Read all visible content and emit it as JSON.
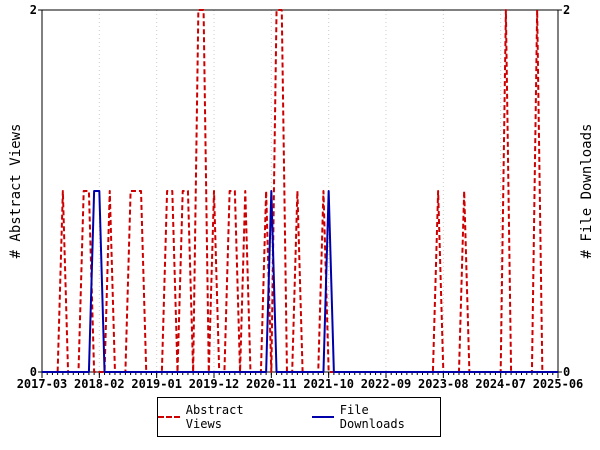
{
  "chart_data": {
    "type": "line",
    "x_tick_labels": [
      "2017-03",
      "2018-02",
      "2019-01",
      "2019-12",
      "2020-11",
      "2021-10",
      "2022-09",
      "2023-08",
      "2024-07",
      "2025-06"
    ],
    "x_range": [
      "2017-03",
      "2025-06"
    ],
    "ylabel_left": "# Abstract Views",
    "ylabel_right": "# File Downloads",
    "y_tick_labels_left": [
      "0",
      "2"
    ],
    "y_tick_labels_right": [
      "0",
      "2"
    ],
    "ylim": [
      0,
      2
    ],
    "legend_position": "bottom",
    "series": [
      {
        "name": "Abstract Views",
        "color": "#cc0000",
        "style": "dashed",
        "points": [
          [
            "2017-07",
            1
          ],
          [
            "2017-11",
            1
          ],
          [
            "2017-12",
            1
          ],
          [
            "2018-04",
            1
          ],
          [
            "2018-08",
            1
          ],
          [
            "2018-09",
            1
          ],
          [
            "2018-10",
            1
          ],
          [
            "2019-03",
            1
          ],
          [
            "2019-04",
            1
          ],
          [
            "2019-06",
            1
          ],
          [
            "2019-07",
            1
          ],
          [
            "2019-09",
            2
          ],
          [
            "2019-10",
            2
          ],
          [
            "2019-12",
            1
          ],
          [
            "2020-03",
            1
          ],
          [
            "2020-04",
            1
          ],
          [
            "2020-06",
            1
          ],
          [
            "2020-10",
            1
          ],
          [
            "2020-12",
            2
          ],
          [
            "2021-01",
            2
          ],
          [
            "2021-04",
            1
          ],
          [
            "2021-09",
            1
          ],
          [
            "2023-07",
            1
          ],
          [
            "2023-12",
            1
          ],
          [
            "2024-08",
            2
          ],
          [
            "2025-02",
            2
          ]
        ]
      },
      {
        "name": "File Downloads",
        "color": "#0000aa",
        "style": "solid",
        "points": [
          [
            "2018-01",
            1
          ],
          [
            "2018-02",
            1
          ],
          [
            "2020-11",
            1
          ],
          [
            "2021-10",
            1
          ]
        ]
      }
    ]
  }
}
